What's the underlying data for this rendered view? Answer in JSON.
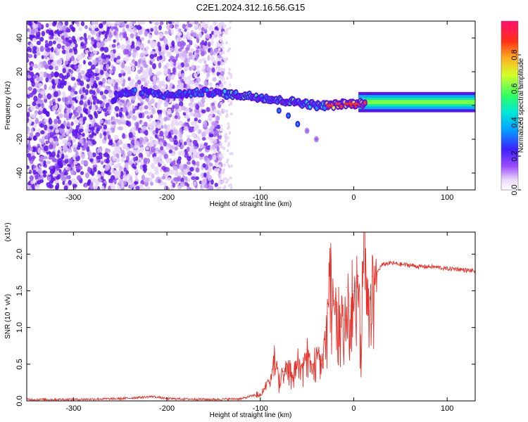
{
  "title": "C2E1.2024.312.16.56.G15",
  "chart_data": [
    {
      "type": "heatmap",
      "xlabel": "Height of straight line (km)",
      "ylabel": "Frequency (Hz)",
      "xlim": [
        -350,
        130
      ],
      "ylim": [
        -50,
        50
      ],
      "x_ticks": [
        -300,
        -200,
        -100,
        0,
        100
      ],
      "y_ticks": [
        -40,
        -20,
        0,
        20,
        40
      ],
      "colorbar": {
        "label": "Normalized spectral amplitude",
        "range": [
          0,
          1
        ],
        "ticks": [
          "0.0",
          "0.2",
          "0.4",
          "0.6",
          "0.8"
        ]
      },
      "ridge": [
        [
          -255,
          7
        ],
        [
          -225,
          8
        ],
        [
          -200,
          6
        ],
        [
          -180,
          7
        ],
        [
          -160,
          8
        ],
        [
          -140,
          7
        ],
        [
          -120,
          6
        ],
        [
          -100,
          5
        ],
        [
          -80,
          3
        ],
        [
          -60,
          2
        ],
        [
          -40,
          0
        ],
        [
          -25,
          0
        ],
        [
          -10,
          1
        ],
        [
          0,
          1
        ],
        [
          20,
          2
        ],
        [
          60,
          2
        ],
        [
          100,
          2
        ],
        [
          130,
          2
        ]
      ],
      "lower_branch": [
        [
          -80,
          -3
        ],
        [
          -70,
          -6
        ],
        [
          -60,
          -11
        ],
        [
          -50,
          -15
        ],
        [
          -40,
          -20
        ]
      ]
    },
    {
      "type": "line",
      "xlabel": "Height of straight line (km)",
      "ylabel": "SNR (10 * v/v)",
      "y_multiplier": "(x10⁴)",
      "xlim": [
        -350,
        130
      ],
      "ylim": [
        0,
        2.3
      ],
      "x_ticks": [
        -300,
        -200,
        -100,
        0,
        100
      ],
      "y_ticks": [
        "0.0",
        "0.5",
        "1.0",
        "1.5",
        "2.0"
      ],
      "line_color": "#e8312a",
      "series": [
        {
          "x": [
            -350,
            -300,
            -250,
            -215,
            -200,
            -150,
            -120,
            -100,
            -95,
            -88,
            -85,
            -80,
            -75,
            -70,
            -65,
            -60,
            -55,
            -50,
            -45,
            -40,
            -35,
            -30,
            -28,
            -25,
            -22,
            -20,
            -15,
            -10,
            -8,
            -5,
            -2,
            0,
            5,
            8,
            10,
            15,
            20,
            25,
            30,
            35,
            40,
            50,
            60,
            70,
            80,
            90,
            100,
            110,
            120,
            130
          ],
          "values": [
            0.02,
            0.02,
            0.03,
            0.06,
            0.03,
            0.02,
            0.03,
            0.1,
            0.2,
            0.35,
            0.75,
            0.3,
            0.4,
            0.5,
            0.35,
            0.6,
            0.45,
            0.7,
            0.5,
            0.7,
            0.55,
            1.0,
            1.2,
            1.9,
            1.3,
            1.4,
            1.2,
            1.1,
            1.55,
            1.3,
            1.6,
            1.5,
            1.7,
            0.6,
            2.3,
            1.5,
            1.7,
            1.75,
            1.85,
            1.87,
            1.88,
            1.86,
            1.85,
            1.83,
            1.83,
            1.82,
            1.8,
            1.8,
            1.78,
            1.77
          ]
        }
      ]
    }
  ]
}
